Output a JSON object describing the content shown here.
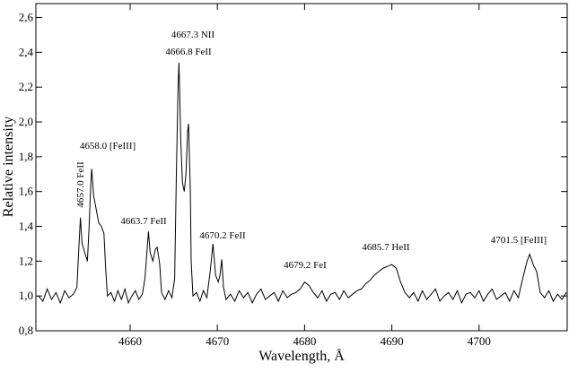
{
  "chart_data": {
    "type": "line",
    "xlabel": "Wavelength, Å",
    "ylabel": "Relative intensity",
    "xlim": [
      4649.2,
      4710.1
    ],
    "ylim": [
      0.8,
      2.68
    ],
    "xticks": [
      4660,
      4670,
      4680,
      4690,
      4700
    ],
    "yticks": [
      {
        "value": 0.8,
        "label": "0,8"
      },
      {
        "value": 1.0,
        "label": "1,0"
      },
      {
        "value": 1.2,
        "label": "1,2"
      },
      {
        "value": 1.4,
        "label": "1,4"
      },
      {
        "value": 1.6,
        "label": "1,6"
      },
      {
        "value": 1.8,
        "label": "1,8"
      },
      {
        "value": 2.0,
        "label": "2,0"
      },
      {
        "value": 2.2,
        "label": "2,2"
      },
      {
        "value": 2.4,
        "label": "2,4"
      },
      {
        "value": 2.6,
        "label": "2,6"
      }
    ],
    "annotations": [
      "4667.3 NII",
      "4666.8 FeII",
      "4658.0 [FeIII]",
      "4657.0 FeII",
      "4663.7 FeII",
      "4670.2 FeII",
      "4679.2 FeI",
      "4685.7 HeII",
      "4701.5 [FeIII]"
    ],
    "series": [
      {
        "color": "#000000",
        "x": [
          4649.5,
          4650,
          4650.5,
          4651,
          4651.5,
          4652,
          4652.5,
          4653,
          4653.5,
          4653.9,
          4654.1,
          4654.3,
          4654.5,
          4654.8,
          4655.1,
          4655.3,
          4655.5,
          4655.6,
          4655.8,
          4656.1,
          4656.4,
          4656.7,
          4657.0,
          4657.2,
          4657.4,
          4657.8,
          4658.2,
          4658.6,
          4659.0,
          4659.4,
          4659.8,
          4660.2,
          4660.6,
          4661.0,
          4661.4,
          4661.7,
          4662.0,
          4662.1,
          4662.3,
          4662.6,
          4662.9,
          4663.1,
          4663.4,
          4663.6,
          4664.0,
          4664.4,
          4664.8,
          4665.1,
          4665.3,
          4665.5,
          4665.6,
          4665.8,
          4666.0,
          4666.2,
          4666.4,
          4666.6,
          4666.7,
          4666.9,
          4667.0,
          4667.2,
          4667.6,
          4668.0,
          4668.4,
          4668.8,
          4669.2,
          4669.5,
          4669.8,
          4670.1,
          4670.3,
          4670.5,
          4670.7,
          4671.0,
          4671.5,
          4672,
          4672.5,
          4673,
          4673.5,
          4674,
          4674.5,
          4675,
          4675.5,
          4676,
          4676.5,
          4677,
          4677.5,
          4678,
          4678.5,
          4679,
          4679.5,
          4680.0,
          4680.5,
          4681.0,
          4681.5,
          4682,
          4682.5,
          4683,
          4683.5,
          4684,
          4684.5,
          4685,
          4685.5,
          4686,
          4686.5,
          4687,
          4687.5,
          4688,
          4688.5,
          4689,
          4689.5,
          4690,
          4690.5,
          4691,
          4691.5,
          4692,
          4692.5,
          4693,
          4693.5,
          4694,
          4694.5,
          4695,
          4695.5,
          4696,
          4696.5,
          4697,
          4697.5,
          4698,
          4698.5,
          4699,
          4699.5,
          4700,
          4700.5,
          4701,
          4701.5,
          4702,
          4702.5,
          4703,
          4703.5,
          4704,
          4704.5,
          4705,
          4705.5,
          4705.8,
          4706.2,
          4706.6,
          4707,
          4707.5,
          4708,
          4708.5,
          4709,
          4709.5,
          4710
        ],
        "values": [
          1.0,
          0.97,
          1.04,
          0.98,
          1.02,
          0.96,
          1.03,
          0.99,
          1.01,
          1.05,
          1.25,
          1.45,
          1.3,
          1.25,
          1.2,
          1.4,
          1.65,
          1.73,
          1.58,
          1.5,
          1.42,
          1.4,
          1.36,
          1.15,
          1.0,
          1.02,
          0.97,
          1.03,
          0.98,
          1.04,
          0.96,
          1.0,
          1.03,
          0.98,
          1.01,
          1.1,
          1.3,
          1.37,
          1.25,
          1.2,
          1.27,
          1.28,
          1.18,
          1.02,
          0.98,
          1.03,
          0.99,
          1.1,
          1.7,
          2.2,
          2.34,
          1.9,
          1.65,
          1.6,
          1.7,
          1.95,
          1.99,
          1.6,
          1.2,
          1.0,
          1.02,
          0.97,
          1.03,
          0.99,
          1.15,
          1.3,
          1.12,
          1.08,
          1.12,
          1.21,
          1.05,
          0.98,
          1.01,
          0.97,
          1.03,
          0.99,
          1.02,
          0.96,
          1.01,
          1.04,
          0.98,
          1.0,
          1.02,
          0.97,
          1.03,
          0.99,
          1.01,
          1.02,
          1.04,
          1.08,
          1.06,
          1.02,
          0.99,
          1.03,
          0.97,
          1.01,
          1.02,
          0.98,
          1.03,
          0.99,
          1.01,
          1.03,
          1.04,
          1.07,
          1.09,
          1.12,
          1.14,
          1.16,
          1.17,
          1.18,
          1.16,
          1.08,
          1.02,
          0.99,
          1.02,
          0.97,
          1.03,
          0.98,
          1.01,
          1.04,
          0.97,
          1.0,
          1.02,
          0.98,
          1.03,
          0.96,
          1.01,
          1.02,
          0.99,
          1.03,
          0.97,
          1.01,
          1.04,
          0.98,
          1.0,
          1.02,
          0.97,
          1.03,
          0.99,
          1.1,
          1.2,
          1.24,
          1.18,
          1.14,
          1.02,
          0.99,
          1.03,
          0.97,
          1.01,
          0.98,
          1.02
        ]
      }
    ]
  }
}
